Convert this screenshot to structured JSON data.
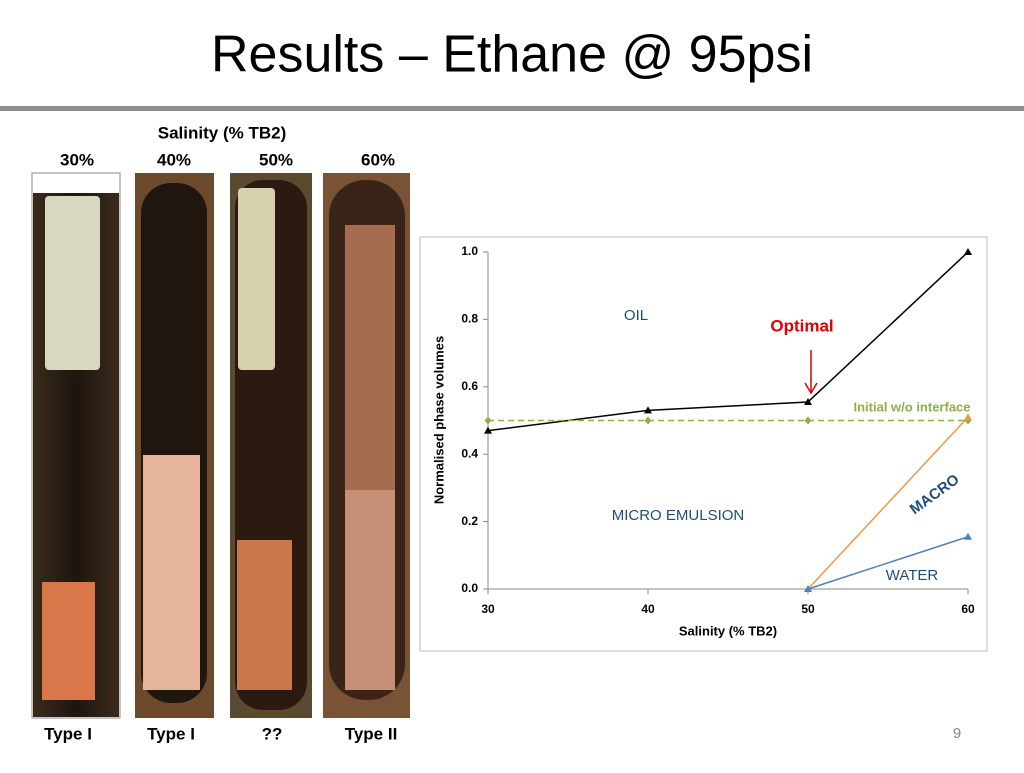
{
  "slide": {
    "title": "Results – Ethane @ 95psi",
    "photo_header": "Salinity (% TB2)",
    "photo_salinities": [
      "30%",
      "40%",
      "50%",
      "60%"
    ],
    "photo_types": [
      "Type I",
      "Type I",
      "??",
      "Type II"
    ],
    "page_number": "9"
  },
  "chart_data": {
    "type": "line",
    "x": [
      30,
      40,
      50,
      60
    ],
    "series": [
      {
        "color": "#000000",
        "marker": "triangle",
        "dashed": false,
        "values": [
          0.47,
          0.53,
          0.555,
          1.0
        ]
      },
      {
        "color": "#8db04a",
        "marker": "diamond",
        "dashed": true,
        "values": [
          0.5,
          0.5,
          0.5,
          0.5
        ]
      },
      {
        "color": "#f79646",
        "marker": "triangle",
        "dashed": false,
        "values": [
          null,
          null,
          0,
          0.51
        ]
      },
      {
        "color": "#4f81bd",
        "marker": "triangle",
        "dashed": false,
        "values": [
          null,
          null,
          0,
          0.155
        ]
      }
    ],
    "xlim": [
      30,
      60
    ],
    "xticks": [
      30,
      40,
      50,
      60
    ],
    "ylim": [
      0,
      1
    ],
    "yticks": [
      {
        "value": 0,
        "label": "0.0"
      },
      0.2,
      0.4,
      0.6,
      0.8,
      {
        "value": 1,
        "label": "1.0"
      }
    ],
    "x_label": "Salinity (% TB2)",
    "y_label": "Normalised phase volumes",
    "annotations": {
      "oil": "OIL",
      "optimal": "Optimal",
      "initial": "Initial w/o interface",
      "macro": "MACRO",
      "micro": "MICRO EMULSION",
      "water": "WATER"
    }
  }
}
